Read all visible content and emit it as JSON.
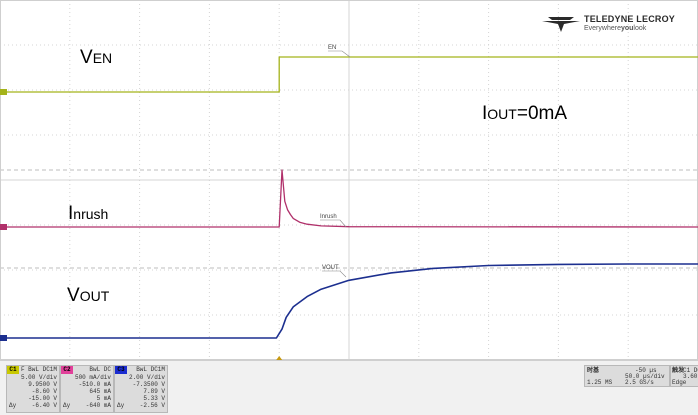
{
  "chart_data": {
    "type": "line",
    "x_range_us": [
      -250,
      250
    ],
    "x_divisions": 10,
    "time_per_div": "50.0 µs/div",
    "grid": true,
    "series": [
      {
        "name": "EN",
        "color": "#a4b31a",
        "x": [
          -250,
          -50,
          -50,
          250
        ],
        "y": [
          0,
          0,
          1,
          1
        ]
      },
      {
        "name": "Inrush",
        "color": "#b0306a",
        "x": [
          -250,
          -50,
          -48,
          -46,
          -44,
          -42,
          -40,
          -35,
          -30,
          -20,
          0,
          250
        ],
        "y": [
          0,
          0,
          1.0,
          0.45,
          0.3,
          0.22,
          0.15,
          0.08,
          0.05,
          0.02,
          0.005,
          0
        ]
      },
      {
        "name": "Vout",
        "color": "#1c2f8f",
        "x": [
          -250,
          -52,
          -48,
          -45,
          -40,
          -30,
          -20,
          0,
          30,
          60,
          100,
          150,
          200,
          250
        ],
        "y": [
          0,
          0,
          0.12,
          0.28,
          0.42,
          0.56,
          0.66,
          0.78,
          0.88,
          0.94,
          0.98,
          0.995,
          1.0,
          1.0
        ]
      }
    ]
  },
  "annotations": {
    "ven": {
      "main": "V",
      "sub": "EN"
    },
    "iinrush": {
      "main": "I",
      "sub": "nrush"
    },
    "vout": {
      "main": "V",
      "sub": "OUT"
    },
    "iout": {
      "main": "I",
      "sub": "OUT",
      "tail": "=0mA"
    }
  },
  "trace_labels": {
    "en": "EN",
    "inrush": "Inrush",
    "vout": "VOUT"
  },
  "logo": {
    "brand": "TELEDYNE LECROY",
    "tagline_pre": "Everywhere",
    "tagline_bold": "you",
    "tagline_post": "look"
  },
  "channels": [
    {
      "tag": "C1",
      "color": "#c8c800",
      "coupling": "F BwL DC1M",
      "rows": [
        "5.00 V/div",
        "9.9500 V",
        "-8.60 V",
        "-15.00 V",
        "-6.40 V"
      ],
      "left": [
        "",
        "",
        "",
        "",
        "Δy"
      ]
    },
    {
      "tag": "C2",
      "color": "#e2409a",
      "coupling": "BwL DC",
      "rows": [
        "500 mA/div",
        "-510.0 mA",
        "645 mA",
        "5 mA",
        "-640 mA"
      ],
      "left": [
        "",
        "",
        "",
        "",
        "Δy"
      ]
    },
    {
      "tag": "C3",
      "color": "#1a2bd0",
      "coupling": "BwL DC1M",
      "rows": [
        "2.00 V/div",
        "-7.3500 V",
        "7.89 V",
        "5.33 V",
        "-2.56 V"
      ],
      "left": [
        "",
        "",
        "",
        "",
        "Δy"
      ]
    }
  ],
  "timebase": {
    "label": "时基",
    "offset": "-50 µs",
    "div": "50.0 µs/div",
    "samples": "1.25 MS",
    "rate": "2.5 GS/s"
  },
  "trigger": {
    "label": "触发",
    "src": "C1 DC",
    "level": "3.60 V",
    "mode": "Edge"
  }
}
